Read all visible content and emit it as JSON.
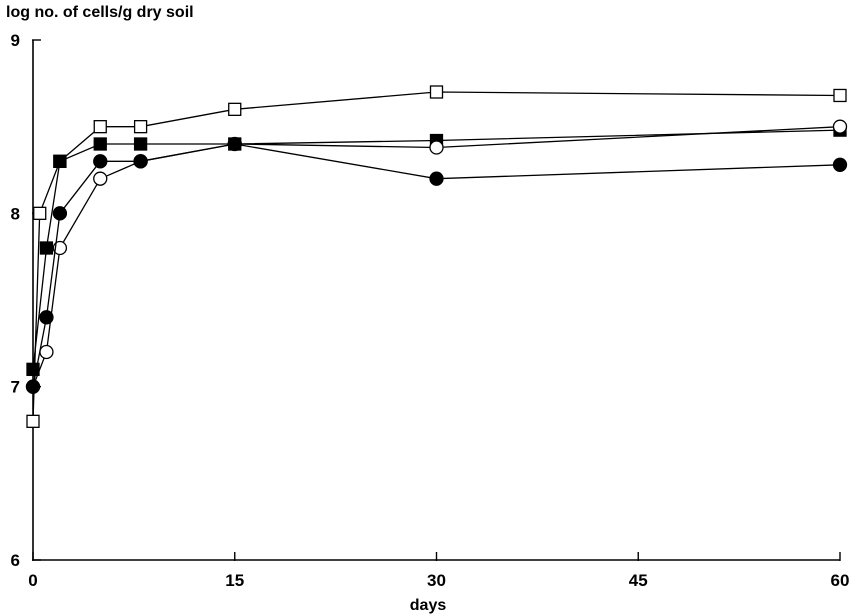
{
  "chart_data": {
    "type": "line",
    "ylabel": "log no. of cells/g dry soil",
    "xlabel": "days",
    "xlim": [
      0,
      60
    ],
    "ylim": [
      6,
      9
    ],
    "xticks": [
      0,
      15,
      30,
      45,
      60
    ],
    "yticks": [
      6,
      7,
      8,
      9
    ],
    "xtick_labels": [
      "0",
      "15",
      "30",
      "45",
      "60"
    ],
    "ytick_labels": [
      "6",
      "7",
      "8",
      "9"
    ],
    "grid": false,
    "series": [
      {
        "marker": "open-square",
        "x": [
          0,
          0.5,
          2,
          5,
          8,
          15,
          30,
          60
        ],
        "y": [
          6.8,
          8.0,
          8.3,
          8.5,
          8.5,
          8.6,
          8.7,
          8.68
        ]
      },
      {
        "marker": "filled-square",
        "x": [
          0,
          1,
          2,
          5,
          8,
          15,
          30,
          60
        ],
        "y": [
          7.1,
          7.8,
          8.3,
          8.4,
          8.4,
          8.4,
          8.42,
          8.48
        ]
      },
      {
        "marker": "open-circle",
        "x": [
          0,
          1,
          2,
          5,
          8,
          15,
          30,
          60
        ],
        "y": [
          7.0,
          7.2,
          7.8,
          8.2,
          8.3,
          8.4,
          8.38,
          8.5
        ]
      },
      {
        "marker": "filled-circle",
        "x": [
          0,
          1,
          2,
          5,
          8,
          15,
          30,
          60
        ],
        "y": [
          7.0,
          7.4,
          8.0,
          8.3,
          8.3,
          8.4,
          8.2,
          8.28
        ]
      }
    ]
  }
}
